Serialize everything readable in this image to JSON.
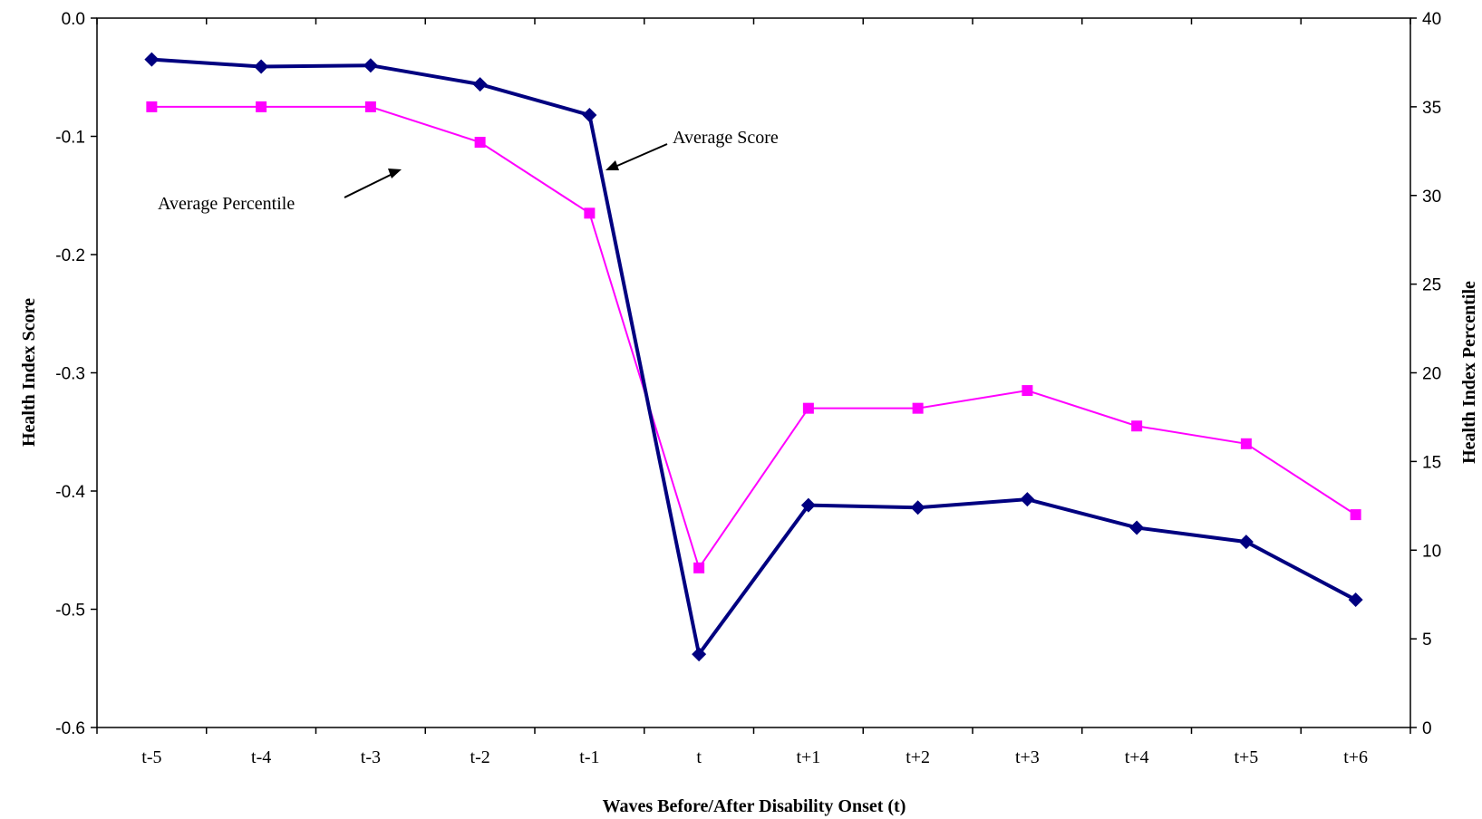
{
  "chart_data": {
    "type": "line",
    "categories": [
      "t-5",
      "t-4",
      "t-3",
      "t-2",
      "t-1",
      "t",
      "t+1",
      "t+2",
      "t+3",
      "t+4",
      "t+5",
      "t+6"
    ],
    "xlabel": "Waves Before/After Disability Onset (t)",
    "ylabel_left": "Health Index Score",
    "ylabel_right": "Health Index Percentile",
    "ylim_left": [
      -0.6,
      0.0
    ],
    "yticks_left": [
      "0.0",
      "-0.1",
      "-0.2",
      "-0.3",
      "-0.4",
      "-0.5",
      "-0.6"
    ],
    "ylim_right": [
      0,
      40
    ],
    "yticks_right": [
      "40",
      "35",
      "30",
      "25",
      "20",
      "15",
      "10",
      "5",
      "0"
    ],
    "grid": false,
    "legend": "none",
    "series": [
      {
        "axis": "left",
        "color": "#000080",
        "marker": "diamond",
        "values": [
          -0.035,
          -0.041,
          -0.04,
          -0.056,
          -0.082,
          -0.538,
          -0.412,
          -0.414,
          -0.407,
          -0.431,
          -0.443,
          -0.492
        ]
      },
      {
        "axis": "right",
        "color": "#FF00FF",
        "marker": "square",
        "values": [
          35,
          35,
          35,
          33,
          29,
          9,
          18,
          18,
          19,
          17,
          16,
          12
        ]
      }
    ],
    "annotations": [
      {
        "text": "Average Score"
      },
      {
        "text": "Average Percentile"
      }
    ]
  }
}
